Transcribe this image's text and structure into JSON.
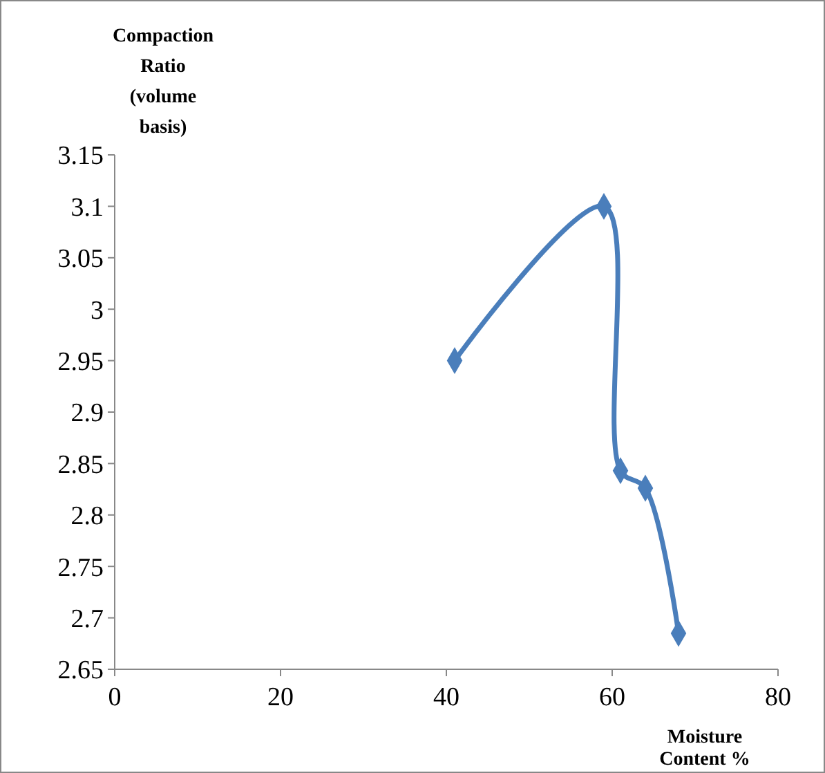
{
  "chart_data": {
    "type": "line",
    "xlabel": "Moisture Content %",
    "ylabel": "Compaction Ratio (volume basis)",
    "x": [
      41,
      59,
      61,
      64,
      68
    ],
    "series": [
      {
        "color": "#4a7ebb",
        "values": [
          2.95,
          3.1,
          2.843,
          2.826,
          2.685
        ]
      }
    ],
    "xlim": [
      0,
      80
    ],
    "xticks": [
      0,
      20,
      40,
      60,
      80
    ],
    "ylim": [
      2.65,
      3.15
    ],
    "yticks": [
      {
        "value": 2.65,
        "label": "2.65"
      },
      {
        "value": 2.7,
        "label": "2.7"
      },
      {
        "value": 2.75,
        "label": "2.75"
      },
      {
        "value": 2.8,
        "label": "2.8"
      },
      {
        "value": 2.85,
        "label": "2.85"
      },
      {
        "value": 2.9,
        "label": "2.9"
      },
      {
        "value": 2.95,
        "label": "2.95"
      },
      {
        "value": 3,
        "label": "3"
      },
      {
        "value": 3.05,
        "label": "3.05"
      },
      {
        "value": 3.1,
        "label": "3.1"
      },
      {
        "value": 3.15,
        "label": "3.15"
      }
    ],
    "grid": false,
    "marker": "diamond",
    "line_style": "solid"
  }
}
